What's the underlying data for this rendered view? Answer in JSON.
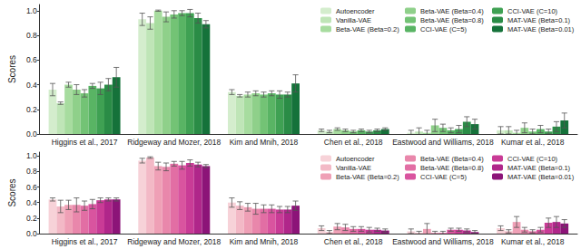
{
  "chart_data": [
    {
      "type": "bar",
      "ylabel": "Scores",
      "categories": [
        "Higgins et al., 2017",
        "Ridgeway and Mozer, 2018",
        "Kim and Mnih, 2018",
        "Chen et al., 2018",
        "Eastwood and Williams, 2018",
        "Kumar et al., 2018"
      ],
      "ylim": [
        0,
        1.05
      ],
      "yticks": [
        {
          "value": 0,
          "label": "0.0"
        },
        0.2,
        0.4,
        0.6,
        0.8,
        {
          "value": 1,
          "label": "1.0"
        }
      ],
      "grid": false,
      "legend": "upper right",
      "series": [
        {
          "name": "Autoencoder",
          "color": "#d4edcd",
          "values": [
            0.36,
            0.93,
            0.34,
            0.03,
            0.01,
            0.03
          ],
          "errors": [
            0.05,
            0.05,
            0.02,
            0.01,
            0.02,
            0.03
          ]
        },
        {
          "name": "Vanilla-VAE",
          "color": "#bfe5b7",
          "values": [
            0.25,
            0.9,
            0.31,
            0.02,
            0.02,
            0.03
          ],
          "errors": [
            0.01,
            0.05,
            0.01,
            0.01,
            0.03,
            0.03
          ]
        },
        {
          "name": "Beta-VAE (Beta=0.2)",
          "color": "#a7dc9f",
          "values": [
            0.4,
            1.0,
            0.32,
            0.04,
            0.01,
            0.01
          ],
          "errors": [
            0.02,
            0.005,
            0.02,
            0.01,
            0.02,
            0.02
          ]
        },
        {
          "name": "Beta-VAE (Beta=0.4)",
          "color": "#8fd08a",
          "values": [
            0.36,
            0.95,
            0.33,
            0.03,
            0.07,
            0.05
          ],
          "errors": [
            0.04,
            0.04,
            0.02,
            0.01,
            0.05,
            0.04
          ]
        },
        {
          "name": "Beta-VAE (Beta=0.8)",
          "color": "#73c375",
          "values": [
            0.33,
            0.97,
            0.32,
            0.02,
            0.05,
            0.02
          ],
          "errors": [
            0.03,
            0.03,
            0.02,
            0.01,
            0.03,
            0.02
          ]
        },
        {
          "name": "CCI-VAE (C=5)",
          "color": "#59b464",
          "values": [
            0.39,
            0.98,
            0.33,
            0.03,
            0.03,
            0.04
          ],
          "errors": [
            0.02,
            0.02,
            0.02,
            0.01,
            0.02,
            0.03
          ]
        },
        {
          "name": "CCI-VAE (C=10)",
          "color": "#3fa153",
          "values": [
            0.37,
            0.98,
            0.32,
            0.02,
            0.04,
            0.02
          ],
          "errors": [
            0.05,
            0.03,
            0.03,
            0.01,
            0.03,
            0.02
          ]
        },
        {
          "name": "MAT-VAE (Beta=0.1)",
          "color": "#2a8c46",
          "values": [
            0.4,
            0.94,
            0.32,
            0.03,
            0.1,
            0.06
          ],
          "errors": [
            0.05,
            0.04,
            0.02,
            0.01,
            0.04,
            0.04
          ]
        },
        {
          "name": "MAT-VAE (Beta=0.01)",
          "color": "#15723a",
          "values": [
            0.46,
            0.89,
            0.41,
            0.04,
            0.08,
            0.11
          ],
          "errors": [
            0.08,
            0.03,
            0.07,
            0.01,
            0.04,
            0.06
          ]
        }
      ]
    },
    {
      "type": "bar",
      "ylabel": "Scores",
      "categories": [
        "Higgins et al., 2017",
        "Ridgeway and Mozer, 2018",
        "Kim and Mnih, 2018",
        "Chen et al., 2018",
        "Eastwood and Williams, 2018",
        "Kumar et al., 2018"
      ],
      "ylim": [
        0,
        1.05
      ],
      "yticks": [
        {
          "value": 0,
          "label": "0.0"
        },
        0.2,
        0.4,
        0.6,
        0.8,
        {
          "value": 1,
          "label": "1.0"
        }
      ],
      "grid": false,
      "legend": "upper right",
      "series": [
        {
          "name": "Autoencoder",
          "color": "#f7d2d8",
          "values": [
            0.44,
            0.94,
            0.4,
            0.07,
            0.03,
            0.07
          ],
          "errors": [
            0.02,
            0.03,
            0.06,
            0.03,
            0.03,
            0.03
          ]
        },
        {
          "name": "Vanilla-VAE",
          "color": "#f3b9c6",
          "values": [
            0.35,
            0.98,
            0.36,
            0.02,
            0.01,
            0.03
          ],
          "errors": [
            0.08,
            0.01,
            0.05,
            0.02,
            0.02,
            0.02
          ]
        },
        {
          "name": "Beta-VAE (Beta=0.2)",
          "color": "#efa0b6",
          "values": [
            0.37,
            0.87,
            0.34,
            0.09,
            0.06,
            0.15
          ],
          "errors": [
            0.06,
            0.05,
            0.05,
            0.04,
            0.07,
            0.07
          ]
        },
        {
          "name": "Beta-VAE (Beta=0.4)",
          "color": "#e987ab",
          "values": [
            0.37,
            0.86,
            0.32,
            0.08,
            0.01,
            0.05
          ],
          "errors": [
            0.09,
            0.05,
            0.07,
            0.04,
            0.02,
            0.03
          ]
        },
        {
          "name": "Beta-VAE (Beta=0.8)",
          "color": "#e26ea4",
          "values": [
            0.36,
            0.9,
            0.32,
            0.06,
            0.01,
            0.03
          ],
          "errors": [
            0.06,
            0.03,
            0.05,
            0.03,
            0.02,
            0.02
          ]
        },
        {
          "name": "CCI-VAE (C=5)",
          "color": "#d9549f",
          "values": [
            0.38,
            0.88,
            0.32,
            0.06,
            0.05,
            0.05
          ],
          "errors": [
            0.06,
            0.05,
            0.05,
            0.03,
            0.02,
            0.03
          ]
        },
        {
          "name": "CCI-VAE (C=10)",
          "color": "#c93b96",
          "values": [
            0.43,
            0.91,
            0.31,
            0.05,
            0.05,
            0.14
          ],
          "errors": [
            0.03,
            0.04,
            0.04,
            0.03,
            0.02,
            0.06
          ]
        },
        {
          "name": "MAT-VAE (Beta=0.1)",
          "color": "#b0268a",
          "values": [
            0.44,
            0.89,
            0.31,
            0.05,
            0.04,
            0.15
          ],
          "errors": [
            0.02,
            0.03,
            0.04,
            0.02,
            0.02,
            0.07
          ]
        },
        {
          "name": "MAT-VAE (Beta=0.01)",
          "color": "#8c1478",
          "values": [
            0.44,
            0.87,
            0.36,
            0.04,
            0.02,
            0.13
          ],
          "errors": [
            0.02,
            0.02,
            0.06,
            0.02,
            0.02,
            0.05
          ]
        }
      ]
    }
  ]
}
